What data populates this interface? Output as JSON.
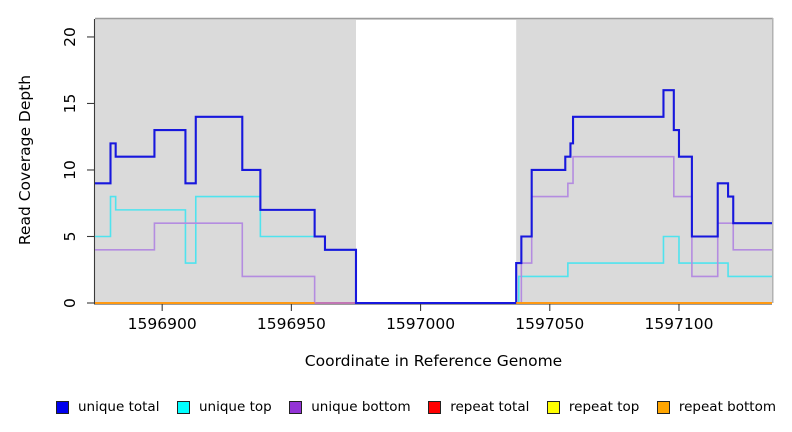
{
  "figure": {
    "xlabel": "Coordinate in Reference Genome",
    "ylabel": "Read Coverage Depth"
  },
  "legend": {
    "items": [
      {
        "label": "unique total",
        "color": "#0000EE"
      },
      {
        "label": "unique top",
        "color": "#00FFFF"
      },
      {
        "label": "unique bottom",
        "color": "#9333D6"
      },
      {
        "label": "repeat total",
        "color": "#FF0000"
      },
      {
        "label": "repeat top",
        "color": "#FFFF00"
      },
      {
        "label": "repeat bottom",
        "color": "#FFA500"
      }
    ]
  },
  "chart_data": {
    "type": "line",
    "subtype": "step-coverage",
    "title": "",
    "xlabel": "Coordinate in Reference Genome",
    "ylabel": "Read Coverage Depth",
    "xlim": [
      1596874,
      1597136
    ],
    "ylim": [
      0,
      21.35
    ],
    "xticks": [
      1596900,
      1596950,
      1597000,
      1597050,
      1597100
    ],
    "yticks": [
      0,
      5,
      10,
      15,
      20
    ],
    "grid": false,
    "legend_position": "bottom",
    "plot_bg": "#DADADA",
    "no_data_region": [
      1596975,
      1597037
    ],
    "series": [
      {
        "name": "repeat top",
        "color": "#FFFF00",
        "width": 2,
        "segments": [
          {
            "xend": 1596975,
            "steps": [
              [
                1596874,
                0
              ]
            ]
          },
          {
            "xend": 1597136,
            "steps": [
              [
                1597037,
                0
              ]
            ]
          }
        ]
      },
      {
        "name": "repeat total",
        "color": "#E8352F",
        "width": 2,
        "segments": [
          {
            "xend": 1596975,
            "steps": [
              [
                1596874,
                0
              ]
            ]
          },
          {
            "xend": 1597136,
            "steps": [
              [
                1597037,
                0
              ]
            ]
          }
        ]
      },
      {
        "name": "unique top",
        "color": "#4FE3EE",
        "width": 1.6,
        "segments": [
          {
            "xend": 1597136,
            "steps": [
              [
                1596874,
                5
              ],
              [
                1596880,
                8
              ],
              [
                1596882,
                7
              ],
              [
                1596909,
                3
              ],
              [
                1596913,
                8
              ],
              [
                1596938,
                5
              ],
              [
                1596963,
                4
              ],
              [
                1596975,
                0
              ],
              [
                1597038,
                2
              ],
              [
                1597057,
                3
              ],
              [
                1597094,
                5
              ],
              [
                1597100,
                3
              ],
              [
                1597119,
                2
              ]
            ]
          }
        ]
      },
      {
        "name": "unique bottom",
        "color": "#B48CE0",
        "width": 1.6,
        "segments": [
          {
            "xend": 1597136,
            "steps": [
              [
                1596874,
                4
              ],
              [
                1596897,
                6
              ],
              [
                1596931,
                2
              ],
              [
                1596959,
                0
              ],
              [
                1597039,
                3
              ],
              [
                1597043,
                8
              ],
              [
                1597057,
                9
              ],
              [
                1597059,
                11
              ],
              [
                1597098,
                8
              ],
              [
                1597105,
                2
              ],
              [
                1597115,
                6
              ],
              [
                1597121,
                4
              ]
            ]
          }
        ]
      },
      {
        "name": "unique total",
        "color": "#1717DD",
        "width": 2.1,
        "segments": [
          {
            "xend": 1597136,
            "steps": [
              [
                1596874,
                9
              ],
              [
                1596880,
                12
              ],
              [
                1596882,
                11
              ],
              [
                1596897,
                13
              ],
              [
                1596909,
                9
              ],
              [
                1596913,
                14
              ],
              [
                1596931,
                10
              ],
              [
                1596938,
                7
              ],
              [
                1596959,
                5
              ],
              [
                1596963,
                4
              ],
              [
                1596975,
                0
              ],
              [
                1597037,
                3
              ],
              [
                1597039,
                5
              ],
              [
                1597043,
                10
              ],
              [
                1597056,
                11
              ],
              [
                1597058,
                12
              ],
              [
                1597059,
                14
              ],
              [
                1597094,
                16
              ],
              [
                1597098,
                13
              ],
              [
                1597100,
                11
              ],
              [
                1597105,
                5
              ],
              [
                1597115,
                9
              ],
              [
                1597119,
                8
              ],
              [
                1597121,
                6
              ]
            ]
          }
        ]
      },
      {
        "name": "repeat bottom",
        "color": "#FF9912",
        "width": 2.1,
        "segments": [
          {
            "xend": 1596959,
            "steps": [
              [
                1596874,
                0
              ]
            ]
          },
          {
            "xend": 1597136,
            "steps": [
              [
                1597037,
                0
              ]
            ]
          }
        ]
      }
    ]
  }
}
